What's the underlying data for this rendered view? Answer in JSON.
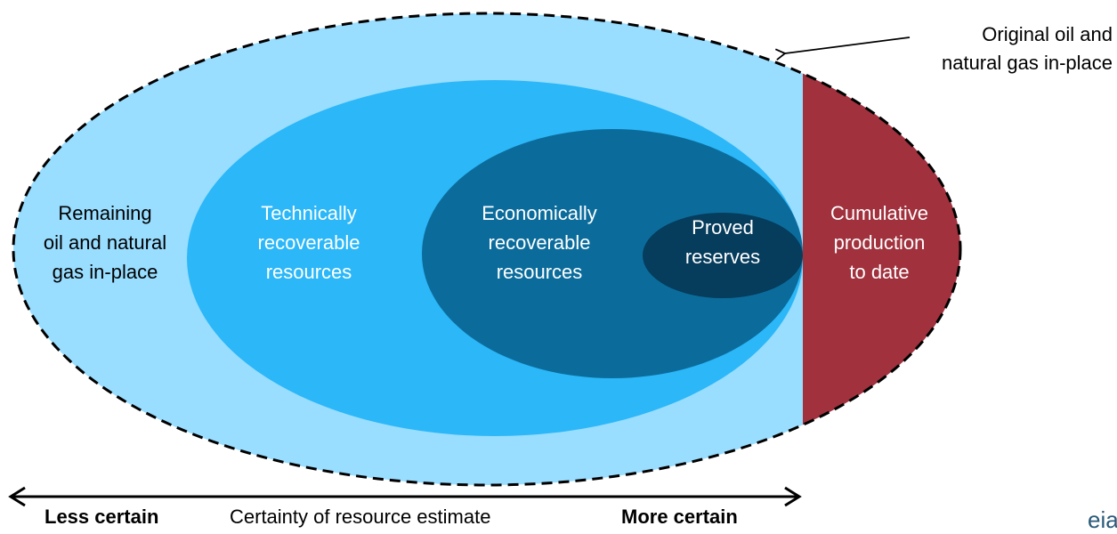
{
  "diagram": {
    "outer_label": [
      "Original oil and",
      "natural gas in-place"
    ],
    "regions": [
      {
        "id": "remaining",
        "lines": [
          "Remaining",
          "oil and natural",
          "gas in-place"
        ]
      },
      {
        "id": "technical",
        "lines": [
          "Technically",
          "recoverable",
          "resources"
        ]
      },
      {
        "id": "economic",
        "lines": [
          "Economically",
          "recoverable",
          "resources"
        ]
      },
      {
        "id": "proved",
        "lines": [
          "Proved",
          "reserves"
        ]
      },
      {
        "id": "cumulative",
        "lines": [
          "Cumulative",
          "production",
          "to date"
        ]
      }
    ],
    "axis": {
      "left": "Less certain",
      "center": "Certainty of resource estimate",
      "right": "More certain"
    },
    "logo": "eia"
  }
}
